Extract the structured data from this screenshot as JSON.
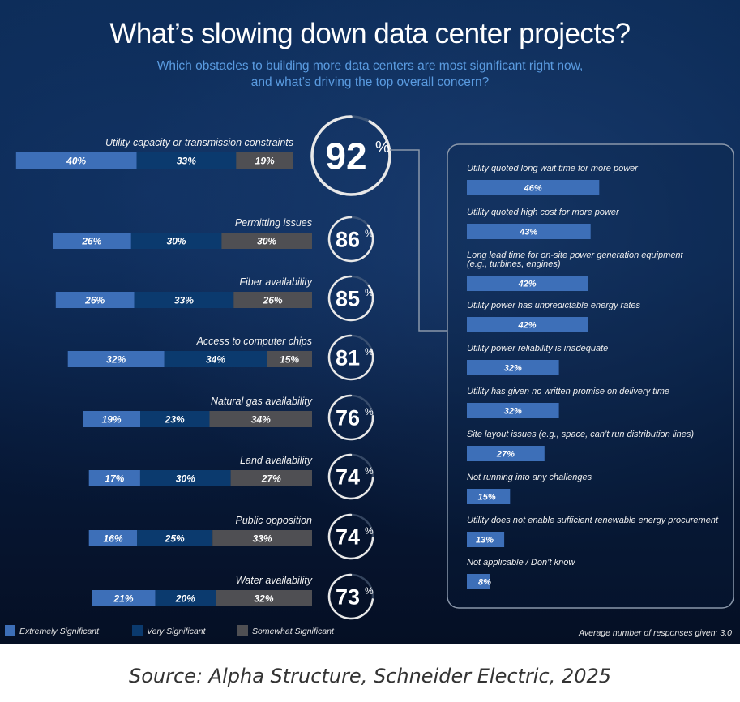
{
  "header": {
    "title": "What’s slowing down data center projects?",
    "subtitle_line1": "Which obstacles to building more data centers are most significant right now,",
    "subtitle_line2": "and what’s driving the top overall concern?"
  },
  "colors": {
    "extremely": "#3d6fb8",
    "very": "#0b3a6e",
    "somewhat": "#4f4f53",
    "detail_bar": "#3d6fb8",
    "ring": "#e8e8e8",
    "ring_track": "#5b6d86"
  },
  "chart_data": [
    {
      "type": "bar",
      "orientation": "horizontal-stacked",
      "title": "What’s slowing down data center projects?",
      "series_names": [
        "Extremely Significant",
        "Very Significant",
        "Somewhat Significant"
      ],
      "categories": [
        "Utility capacity or transmission constraints",
        "Permitting issues",
        "Fiber availability",
        "Access to computer chips",
        "Natural gas availability",
        "Land availability",
        "Public opposition",
        "Water availability"
      ],
      "series": [
        {
          "name": "Extremely Significant",
          "values": [
            40,
            26,
            26,
            32,
            19,
            17,
            16,
            21
          ]
        },
        {
          "name": "Very Significant",
          "values": [
            33,
            30,
            33,
            34,
            23,
            30,
            25,
            20
          ]
        },
        {
          "name": "Somewhat Significant",
          "values": [
            19,
            30,
            26,
            15,
            34,
            27,
            33,
            32
          ]
        }
      ],
      "totals": [
        92,
        86,
        85,
        81,
        76,
        74,
        74,
        73
      ],
      "unit": "%",
      "legend": "bottom-left"
    },
    {
      "type": "bar",
      "orientation": "horizontal",
      "title": "Drivers of utility capacity or transmission constraints",
      "categories": [
        "Utility quoted long wait time for more power",
        "Utility quoted high cost for more power",
        "Long lead time for on-site power generation equipment (e.g., turbines, engines)",
        "Utility power has unpredictable energy rates",
        "Utility power reliability is inadequate",
        "Utility has given no written promise on delivery time",
        "Site layout issues (e.g., space, can’t run distribution lines)",
        "Not running into any challenges",
        "Utility does not enable sufficient renewable energy procurement",
        "Not applicable / Don’t know"
      ],
      "values": [
        46,
        43,
        42,
        42,
        32,
        32,
        27,
        15,
        13,
        8
      ],
      "unit": "%",
      "footnote": "Average number of responses given: 3.0"
    }
  ],
  "left_rows": [
    {
      "label": "Utility capacity or transmission constraints",
      "total": "92",
      "segments": [
        "40%",
        "33%",
        "19%"
      ]
    },
    {
      "label": "Permitting issues",
      "total": "86",
      "segments": [
        "26%",
        "30%",
        "30%"
      ]
    },
    {
      "label": "Fiber availability",
      "total": "85",
      "segments": [
        "26%",
        "33%",
        "26%"
      ]
    },
    {
      "label": "Access to computer chips",
      "total": "81",
      "segments": [
        "32%",
        "34%",
        "15%"
      ]
    },
    {
      "label": "Natural gas availability",
      "total": "76",
      "segments": [
        "19%",
        "23%",
        "34%"
      ]
    },
    {
      "label": "Land availability",
      "total": "74",
      "segments": [
        "17%",
        "30%",
        "27%"
      ]
    },
    {
      "label": "Public opposition",
      "total": "74",
      "segments": [
        "16%",
        "25%",
        "33%"
      ]
    },
    {
      "label": "Water availability",
      "total": "73",
      "segments": [
        "21%",
        "20%",
        "32%"
      ]
    }
  ],
  "percent_sign": "%",
  "detail_rows": [
    {
      "label": [
        "Utility quoted long wait time for more power"
      ],
      "value_label": "46%"
    },
    {
      "label": [
        "Utility quoted high cost for more power"
      ],
      "value_label": "43%"
    },
    {
      "label": [
        "Long lead time for on-site power generation equipment",
        "(e.g., turbines, engines)"
      ],
      "value_label": "42%"
    },
    {
      "label": [
        "Utility power has unpredictable energy rates"
      ],
      "value_label": "42%"
    },
    {
      "label": [
        "Utility power reliability is inadequate"
      ],
      "value_label": "32%"
    },
    {
      "label": [
        "Utility has given no written promise on delivery time"
      ],
      "value_label": "32%"
    },
    {
      "label": [
        "Site layout issues (e.g., space, can’t run distribution lines)"
      ],
      "value_label": "27%"
    },
    {
      "label": [
        "Not running into any challenges"
      ],
      "value_label": "15%"
    },
    {
      "label": [
        "Utility does not enable sufficient renewable energy procurement"
      ],
      "value_label": "13%"
    },
    {
      "label": [
        "Not applicable / Don’t know"
      ],
      "value_label": "8%"
    }
  ],
  "legend": [
    {
      "label": "Extremely Significant",
      "color_key": "extremely"
    },
    {
      "label": "Very Significant",
      "color_key": "very"
    },
    {
      "label": "Somewhat Significant",
      "color_key": "somewhat"
    }
  ],
  "footnote": "Average number of responses given: 3.0",
  "source": "Source: Alpha Structure, Schneider Electric, 2025"
}
